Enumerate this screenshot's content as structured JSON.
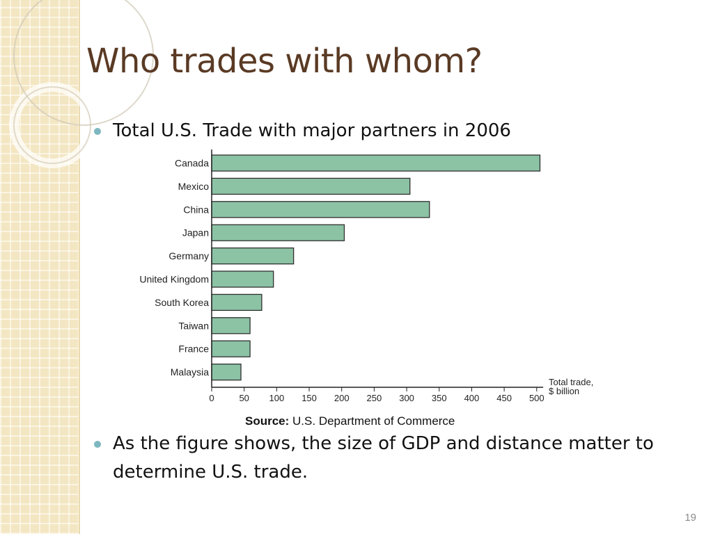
{
  "slide": {
    "title": "Who trades with whom?",
    "bullet1": "Total U.S. Trade with major partners in 2006",
    "source_label": "Source:",
    "source_text": "U.S. Department of Commerce",
    "bullet2": "As the figure shows, the size of GDP and distance matter to determine U.S. trade.",
    "page_number": "19"
  },
  "colors": {
    "bar_fill": "#8cc3a5",
    "bar_stroke": "#2f2f2f",
    "title": "#5a3a24",
    "bullet_dot": "#7db7bf",
    "side_strip": "#f3e6c2"
  },
  "chart_data": {
    "type": "bar",
    "orientation": "horizontal",
    "categories": [
      "Canada",
      "Mexico",
      "China",
      "Japan",
      "Germany",
      "United Kingdom",
      "South Korea",
      "Taiwan",
      "France",
      "Malaysia"
    ],
    "values": [
      505,
      305,
      335,
      204,
      126,
      95,
      77,
      59,
      59,
      45
    ],
    "xlabel_lines": [
      "Total trade,",
      "$ billion"
    ],
    "xlim": [
      0,
      510
    ],
    "xticks": [
      0,
      50,
      100,
      150,
      200,
      250,
      300,
      350,
      400,
      450,
      500
    ],
    "grid": false
  }
}
